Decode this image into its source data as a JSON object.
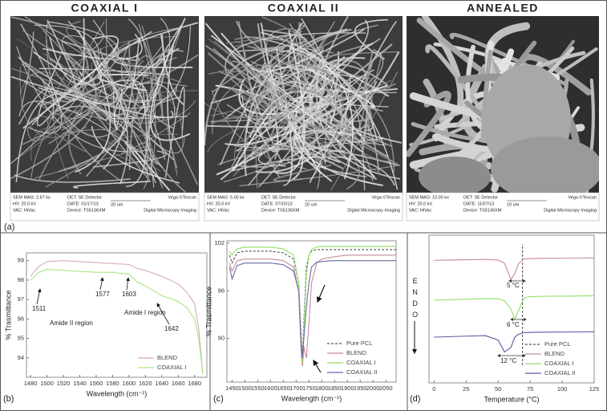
{
  "figure_a": {
    "label": "(a)",
    "images": [
      {
        "title": "COAXIAL I",
        "info": [
          "SEM MAG: 2.67 kx",
          "HV:   20.0 kV",
          "VAC: HiVac",
          "DET: SE Detector",
          "DATE: 01/17/13",
          "Device: TS5136XM"
        ],
        "scale": "20 um",
        "brand": "Vega ©Tescan",
        "caption": "Digital Microscopy Imaging"
      },
      {
        "title": "COAXIAL II",
        "info": [
          "SEM MAG: 5.00 kx",
          "HV:   20.0 kV",
          "VAC: HiVac",
          "DET: SE Detector",
          "DATE: 07/10/13",
          "Device: TS5136XM"
        ],
        "scale": "20 um",
        "brand": "Vega ©Tescan",
        "caption": "Digital Microscopy Imaging"
      },
      {
        "title": "ANNEALED",
        "info": [
          "SEM MAG: 10.00 kx",
          "HV:   20.0 kV",
          "VAC: HiVac",
          "DET: SE Detector",
          "DATE: 11/07/13",
          "Device: TS5136XM"
        ],
        "scale": "10 um",
        "brand": "Vega ©Tescan",
        "caption": "Digital Microscopy Imaging"
      }
    ]
  },
  "chart_data": [
    {
      "type": "line",
      "panel_label": "(b)",
      "x_label": "Wavelength (cm⁻¹)",
      "y_label": "% Trasmittance",
      "x": [
        1480,
        1490,
        1500,
        1520,
        1540,
        1560,
        1580,
        1600,
        1610,
        1620,
        1640,
        1660,
        1670,
        1680,
        1685,
        1690
      ],
      "series": [
        {
          "name": "BLEND",
          "color": "#d9aab6",
          "values": [
            98.2,
            98.7,
            98.95,
            99.0,
            98.95,
            98.9,
            98.85,
            98.8,
            98.6,
            98.5,
            98.2,
            97.8,
            97.4,
            96.8,
            95.5,
            93.2
          ]
        },
        {
          "name": "COAXIAL I",
          "color": "#a6e67e",
          "values": [
            98.0,
            98.4,
            98.55,
            98.5,
            98.45,
            98.4,
            98.4,
            98.3,
            97.9,
            97.7,
            97.2,
            96.9,
            96.6,
            96.0,
            95.0,
            93.2
          ]
        }
      ],
      "xlim": [
        1475,
        1695
      ],
      "ylim": [
        93,
        99.4
      ],
      "xticks": [
        1480,
        1500,
        1520,
        1540,
        1560,
        1580,
        1600,
        1620,
        1640,
        1660,
        1680
      ],
      "yticks": [
        94,
        95,
        96,
        97,
        98,
        99
      ],
      "legend": "lower right",
      "annotations": [
        "1511",
        "1577",
        "1603",
        "1642",
        "Amide II region",
        "Amide I region"
      ]
    },
    {
      "type": "line",
      "panel_label": "(c)",
      "x_label": "Wavelength (cm⁻¹)",
      "y_label": "% Trasmittance",
      "x": [
        1440,
        1450,
        1470,
        1500,
        1550,
        1600,
        1650,
        1690,
        1710,
        1720,
        1725,
        1730,
        1740,
        1750,
        1760,
        1780,
        1800,
        1850,
        1900,
        2000,
        2090
      ],
      "series": [
        {
          "name": "Pure PCL",
          "color": "#555555",
          "dash": true,
          "values": [
            100.5,
            99.5,
            100.8,
            101,
            101,
            101,
            100.8,
            100,
            97,
            90,
            88,
            92,
            99,
            100.5,
            101,
            101.2,
            101.2,
            101.2,
            101.2,
            101.2,
            101.2
          ]
        },
        {
          "name": "BLEND",
          "color": "#c98a9b",
          "values": [
            99.5,
            98.5,
            99.8,
            100,
            100,
            100,
            99.8,
            99,
            96,
            88,
            86.5,
            89,
            87.5,
            92,
            97,
            99.5,
            100,
            100.3,
            100.5,
            100.5,
            100.5
          ]
        },
        {
          "name": "COAXIAL I",
          "color": "#8fe060",
          "values": [
            101,
            100.5,
            101.3,
            101.5,
            101.5,
            101.5,
            101.3,
            100.5,
            97,
            89,
            87,
            91,
            98,
            100.5,
            101.2,
            101.5,
            101.6,
            101.6,
            101.6,
            101.6,
            101.6
          ]
        },
        {
          "name": "COAXIAL II",
          "color": "#6a6aa8",
          "values": [
            99,
            97.5,
            99.2,
            99.5,
            99.5,
            99.5,
            99.3,
            98.5,
            96,
            89,
            87.5,
            90,
            94,
            97,
            99,
            99.6,
            99.7,
            99.8,
            99.8,
            99.8,
            99.8
          ]
        }
      ],
      "xlim": [
        1430,
        2090
      ],
      "ylim": [
        84.5,
        102.3
      ],
      "xticks": [
        1450,
        1500,
        1550,
        1600,
        1650,
        1700,
        1750,
        1800,
        1850,
        1900,
        1950,
        2000,
        2050
      ],
      "yticks": [
        90,
        96,
        102
      ],
      "legend": "lower right",
      "annotations": []
    },
    {
      "type": "line",
      "panel_label": "(d)",
      "x_label": "Temperature (°C)",
      "y_label": "ENDO",
      "x": [
        0,
        20,
        40,
        50,
        55,
        60,
        63,
        66,
        70,
        75,
        90,
        110,
        125
      ],
      "series": [
        {
          "name": "Pure PCL",
          "color": "#555555",
          "dash": true,
          "x": [
            69,
            69
          ],
          "values": [
            1.2,
            9.4
          ]
        },
        {
          "name": "BLEND",
          "color": "#c98a9b",
          "values": [
            8.3,
            8.33,
            8.36,
            8.32,
            8.1,
            7.0,
            7.4,
            8.1,
            8.38,
            8.42,
            8.44,
            8.45,
            8.46
          ]
        },
        {
          "name": "COAXIAL I",
          "color": "#8fe060",
          "values": [
            5.6,
            5.65,
            5.7,
            5.7,
            5.55,
            5.0,
            4.3,
            4.9,
            5.75,
            5.85,
            5.87,
            5.88,
            5.9
          ]
        },
        {
          "name": "COAXIAL II",
          "color": "#5a5aa0",
          "values": [
            3.1,
            3.15,
            3.2,
            2.9,
            2.1,
            2.4,
            3.1,
            3.3,
            3.4,
            3.42,
            3.44,
            3.45,
            3.46
          ]
        }
      ],
      "xlim": [
        -4,
        125
      ],
      "ylim": [
        0,
        10
      ],
      "xticks": [
        0,
        25,
        50,
        75,
        100,
        125
      ],
      "legend": "lower right",
      "annotations": [
        "5 °C",
        "6 °C",
        "12 °C"
      ]
    }
  ]
}
